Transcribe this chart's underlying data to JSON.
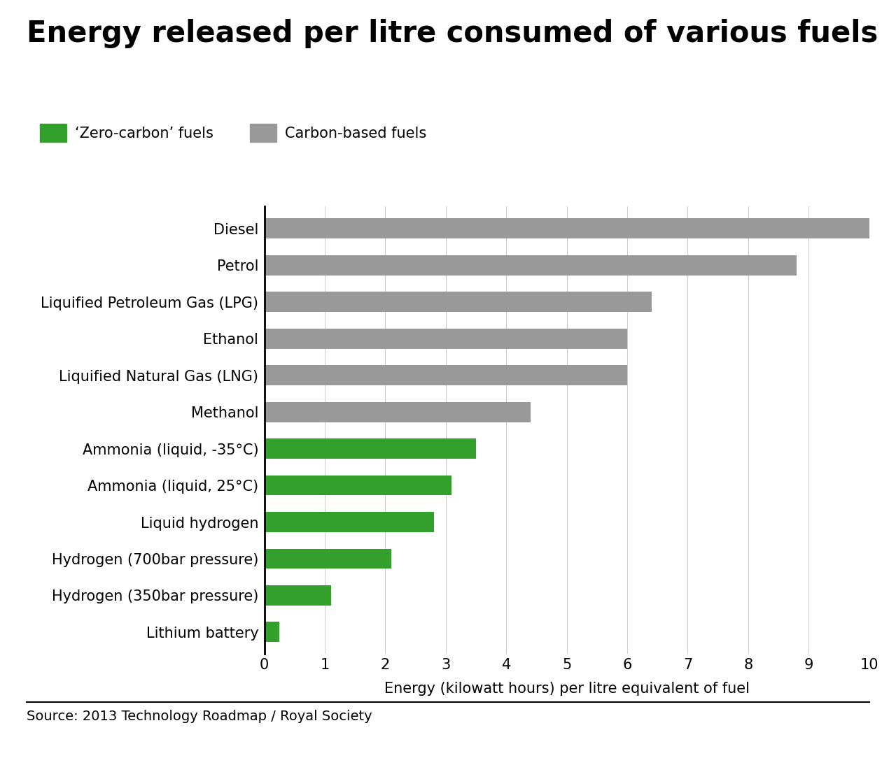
{
  "title": "Energy released per litre consumed of various fuels",
  "categories": [
    "Diesel",
    "Petrol",
    "Liquified Petroleum Gas (LPG)",
    "Ethanol",
    "Liquified Natural Gas (LNG)",
    "Methanol",
    "Ammonia (liquid, -35°C)",
    "Ammonia (liquid, 25°C)",
    "Liquid hydrogen",
    "Hydrogen (700bar pressure)",
    "Hydrogen (350bar pressure)",
    "Lithium battery"
  ],
  "values": [
    10.0,
    8.8,
    6.4,
    6.0,
    6.0,
    4.4,
    3.5,
    3.1,
    2.8,
    2.1,
    1.1,
    0.25
  ],
  "colors": [
    "#999999",
    "#999999",
    "#999999",
    "#999999",
    "#999999",
    "#999999",
    "#33a02c",
    "#33a02c",
    "#33a02c",
    "#33a02c",
    "#33a02c",
    "#33a02c"
  ],
  "green_color": "#33a02c",
  "gray_color": "#999999",
  "xlabel": "Energy (kilowatt hours) per litre equivalent of fuel",
  "xlim": [
    0,
    10
  ],
  "xticks": [
    0,
    1,
    2,
    3,
    4,
    5,
    6,
    7,
    8,
    9,
    10
  ],
  "legend_zero_carbon": "‘Zero-carbon’ fuels",
  "legend_carbon_based": "Carbon-based fuels",
  "source_text": "Source: 2013 Technology Roadmap / Royal Society",
  "background_color": "#ffffff",
  "title_fontsize": 30,
  "label_fontsize": 15,
  "tick_fontsize": 15,
  "source_fontsize": 14,
  "legend_fontsize": 15,
  "bar_height": 0.55
}
